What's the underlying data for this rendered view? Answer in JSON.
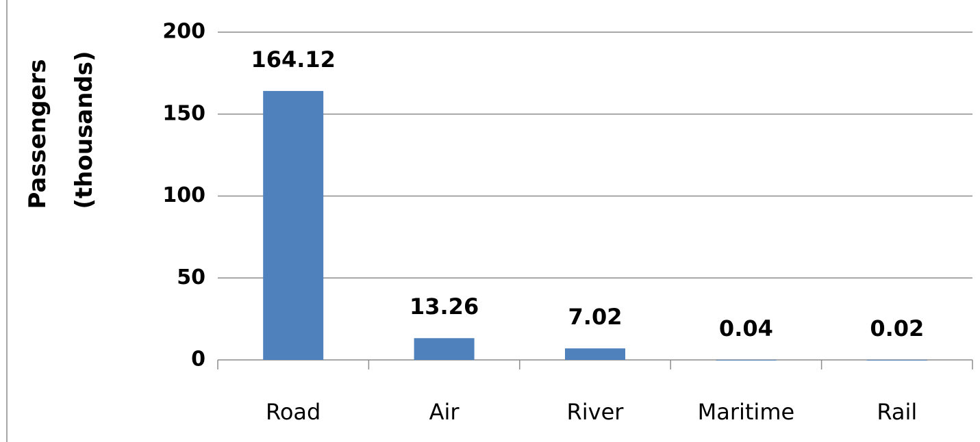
{
  "chart_data": {
    "type": "bar",
    "y_label": "Passengers (thousands)",
    "categories": [
      "Road",
      "Air",
      "River",
      "Maritime",
      "Rail"
    ],
    "values": [
      164.12,
      13.26,
      7.02,
      0.04,
      0.02
    ],
    "color": "#4f81bd",
    "ylim": [
      0,
      200
    ],
    "yticks": [
      0,
      50,
      100,
      150,
      200
    ],
    "grid": true
  }
}
